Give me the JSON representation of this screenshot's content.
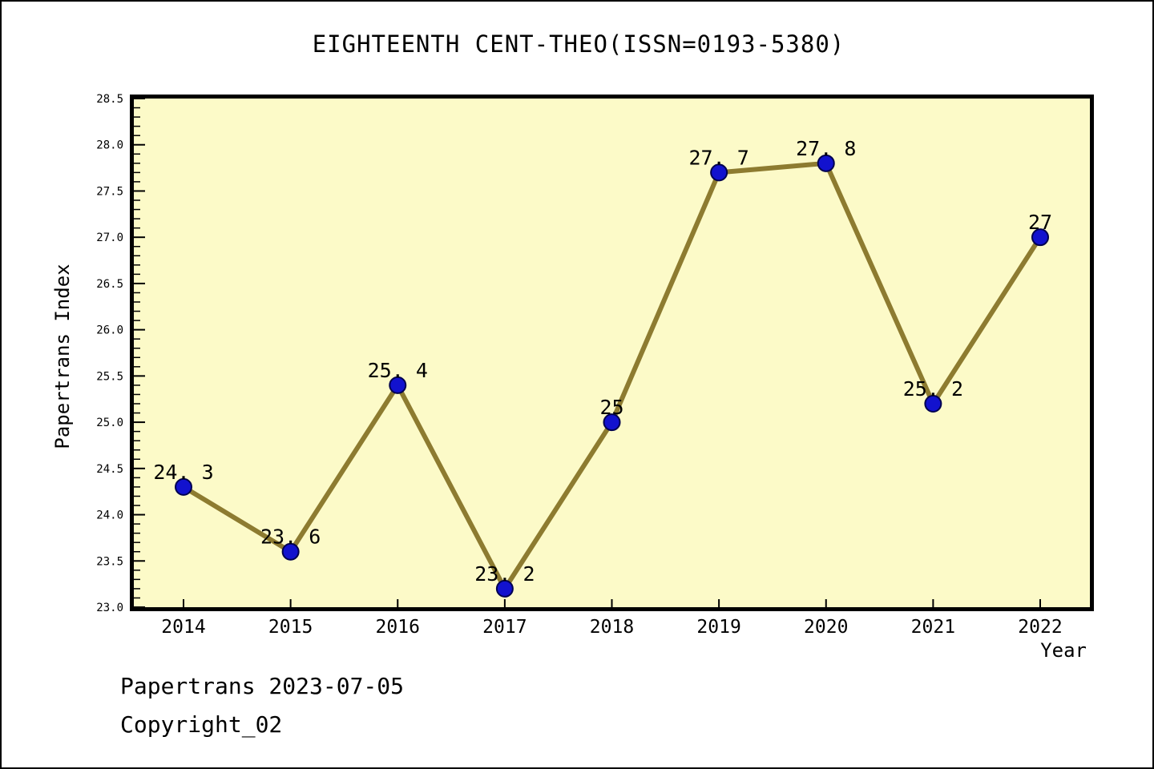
{
  "chart": {
    "title": "EIGHTEENTH CENT-THEO(ISSN=0193-5380)",
    "xlabel": "Year",
    "ylabel": "Papertrans Index",
    "footer_line1": "Papertrans 2023-07-05",
    "footer_line2": "Copyright_02",
    "colors": {
      "page_bg": "#ffffff",
      "page_border": "#000000",
      "plot_bg": "#FCFAC8",
      "line": "#8D7B30",
      "marker_fill": "#1212CE",
      "marker_edge": "#000050",
      "axis": "#000000",
      "text": "#000000"
    }
  },
  "chart_data": {
    "type": "line",
    "x": [
      2014,
      2015,
      2016,
      2017,
      2018,
      2019,
      2020,
      2021,
      2022
    ],
    "values": [
      24.3,
      23.6,
      25.4,
      23.2,
      25,
      27.7,
      27.8,
      25.2,
      27
    ],
    "point_labels": [
      "24. 3",
      "23. 6",
      "25. 4",
      "23. 2",
      "25",
      "27. 7",
      "27. 8",
      "25. 2",
      "27"
    ],
    "title": "EIGHTEENTH CENT-THEO(ISSN=0193-5380)",
    "xlabel": "Year",
    "ylabel": "Papertrans Index",
    "ylim": [
      23.0,
      28.5
    ],
    "y_major_step": 0.5,
    "y_minor_step": 0.1,
    "y_tick_labels": [
      "23.0",
      "23.5",
      "24.0",
      "24.5",
      "25.0",
      "25.5",
      "26.0",
      "26.5",
      "27.0",
      "27.5",
      "28.0",
      "28.5"
    ],
    "x_tick_labels": [
      "2014",
      "2015",
      "2016",
      "2017",
      "2018",
      "2019",
      "2020",
      "2021",
      "2022"
    ],
    "grid": false,
    "legend": null
  }
}
